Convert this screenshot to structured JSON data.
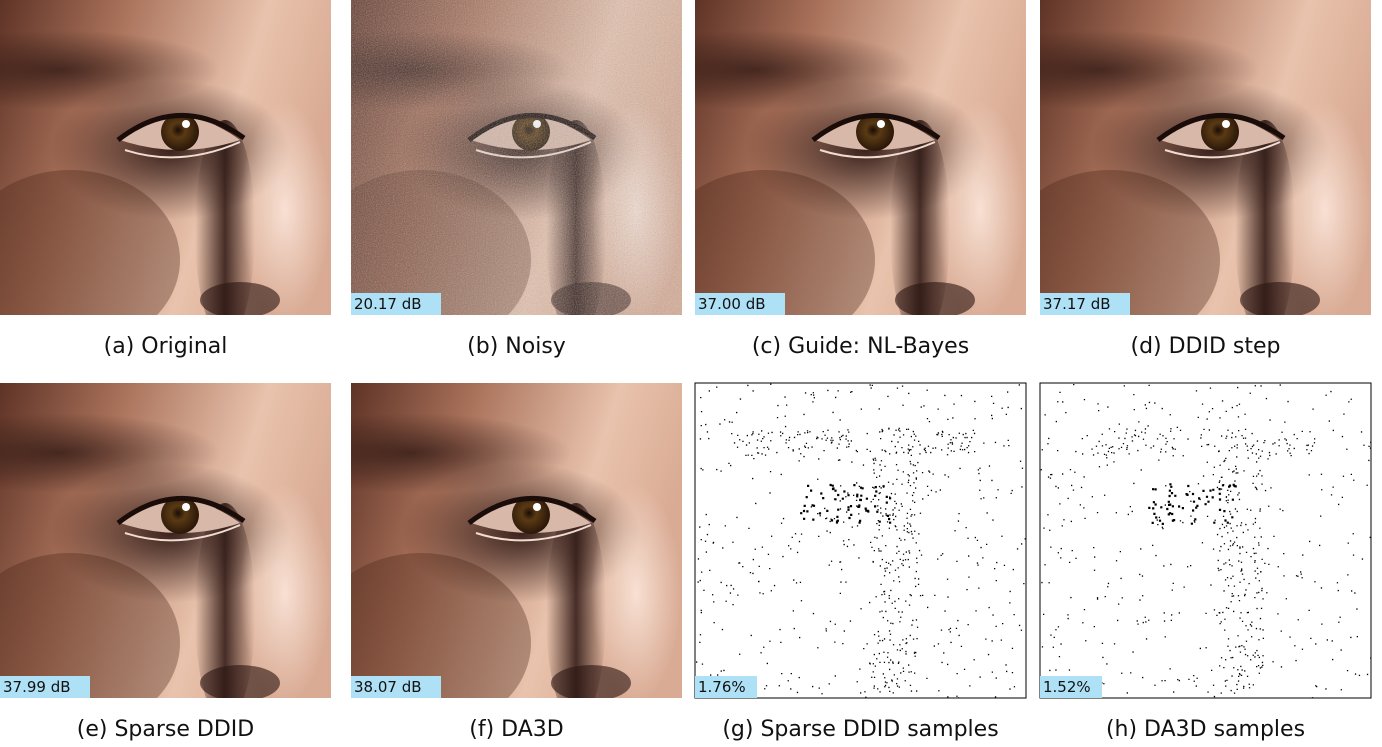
{
  "panels": [
    {
      "caption": "(a) Original"
    },
    {
      "caption": "(b) Noisy",
      "label": "20.17 dB"
    },
    {
      "caption": "(c) Guide: NL-Bayes",
      "label": "37.00 dB"
    },
    {
      "caption": "(d) DDID step",
      "label": "37.17 dB"
    },
    {
      "caption": "(e) Sparse DDID",
      "label": "37.99 dB"
    },
    {
      "caption": "(f) DA3D",
      "label": "38.07 dB"
    },
    {
      "caption": "(g) Sparse DDID samples",
      "label": "1.76%"
    },
    {
      "caption": "(h) DA3D samples",
      "label": "1.52%"
    }
  ]
}
